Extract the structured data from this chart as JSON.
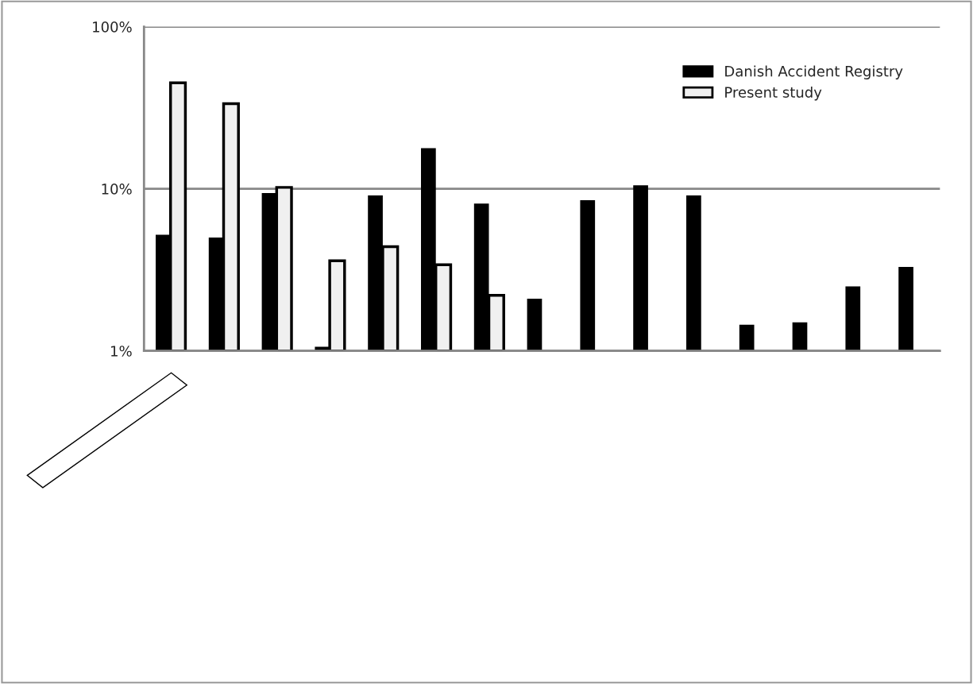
{
  "chart_data": {
    "type": "bar",
    "log": "y",
    "categories": [
      null,
      null,
      null,
      null,
      null,
      null,
      null,
      null,
      null,
      null,
      null,
      null,
      null,
      null,
      null
    ],
    "series": [
      {
        "name": "Danish Accident Registry",
        "color": "#000000",
        "values": [
          5.2,
          5.0,
          9.4,
          1.06,
          9.1,
          17.8,
          8.1,
          2.1,
          8.5,
          10.5,
          9.1,
          1.45,
          1.5,
          2.5,
          3.3
        ]
      },
      {
        "name": "Present study",
        "color": "#f0f0f0",
        "values": [
          45,
          33.5,
          10.2,
          3.6,
          4.4,
          3.4,
          2.2,
          null,
          null,
          null,
          null,
          null,
          null,
          null,
          null
        ]
      }
    ],
    "ylim": [
      1,
      100
    ],
    "yticks": [
      {
        "value": 1,
        "label": "1%"
      },
      {
        "value": 10,
        "label": "10%"
      },
      {
        "value": 100,
        "label": "100%"
      }
    ],
    "grid": "y",
    "legend": "top right"
  }
}
